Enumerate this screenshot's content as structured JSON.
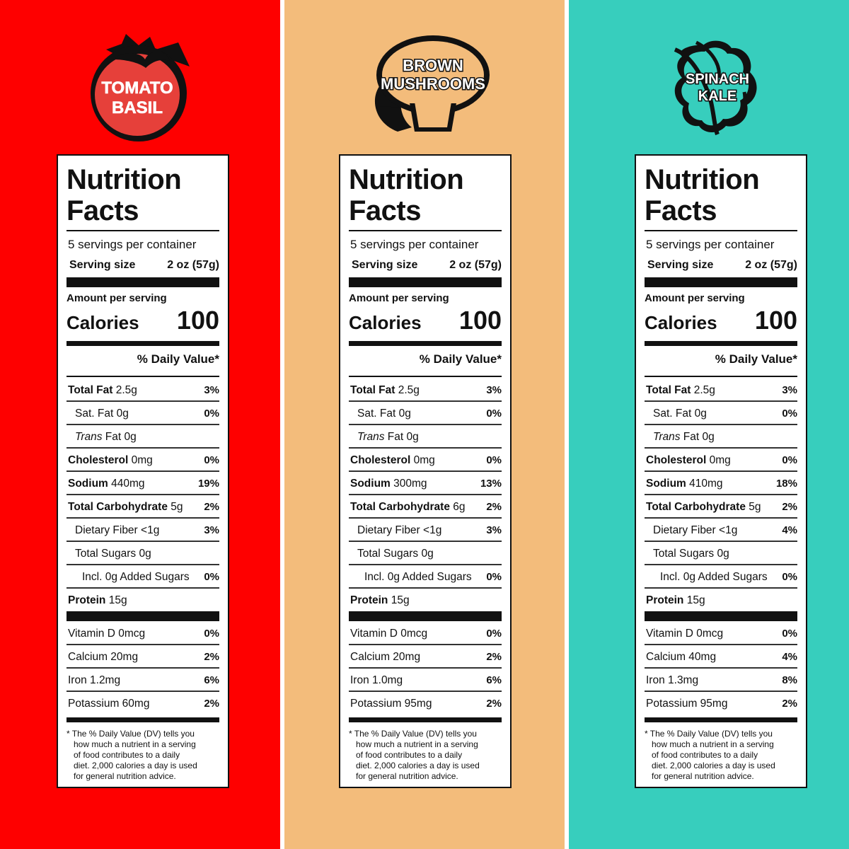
{
  "products": [
    {
      "name_line1": "TOMATO",
      "name_line2": "BASIL",
      "bg_color": "#fe0000",
      "logo_icon": "tomato-icon",
      "title_line1": "Nutrition",
      "title_line2": "Facts",
      "servings": "5 servings per container",
      "serving_size_label": "Serving size",
      "serving_size_value": "2 oz (57g)",
      "amount_per_serving": "Amount per serving",
      "calories_label": "Calories",
      "calories_value": "100",
      "daily_value_header": "% Daily Value*",
      "nutrients": [
        {
          "bold": "Total Fat",
          "text": " 2.5g",
          "pct": "3%"
        },
        {
          "text": "Sat. Fat 0g",
          "pct": "0%"
        },
        {
          "italic": "Trans",
          "text": " Fat 0g",
          "pct": ""
        },
        {
          "bold": "Cholesterol",
          "text": " 0mg",
          "pct": "0%"
        },
        {
          "bold": "Sodium",
          "text": " 440mg",
          "pct": "19%"
        },
        {
          "bold": "Total Carbohydrate",
          "text": " 5g",
          "pct": "2%"
        },
        {
          "text": "Dietary Fiber <1g",
          "pct": "3%"
        },
        {
          "text": "Total Sugars 0g",
          "pct": ""
        },
        {
          "text": "Incl. 0g Added Sugars",
          "pct": "0%"
        },
        {
          "bold": "Protein",
          "text": " 15g",
          "pct": ""
        }
      ],
      "vitamins": [
        {
          "text": "Vitamin D 0mcg",
          "pct": "0%"
        },
        {
          "text": "Calcium 20mg",
          "pct": "2%"
        },
        {
          "text": "Iron 1.2mg",
          "pct": "6%"
        },
        {
          "text": "Potassium 60mg",
          "pct": "2%"
        }
      ],
      "footnote": [
        "* The % Daily Value (DV) tells you",
        "how much a nutrient in a serving",
        "of food contributes to a daily",
        "diet. 2,000 calories a day is used",
        "for general nutrition advice."
      ]
    },
    {
      "name_line1": "BROWN",
      "name_line2": "MUSHROOMS",
      "bg_color": "#f3bc7b",
      "logo_icon": "mushroom-icon",
      "title_line1": "Nutrition",
      "title_line2": "Facts",
      "servings": "5 servings per container",
      "serving_size_label": "Serving size",
      "serving_size_value": "2 oz (57g)",
      "amount_per_serving": "Amount per serving",
      "calories_label": "Calories",
      "calories_value": "100",
      "daily_value_header": "% Daily Value*",
      "nutrients": [
        {
          "bold": "Total Fat",
          "text": " 2.5g",
          "pct": "3%"
        },
        {
          "text": "Sat. Fat 0g",
          "pct": "0%"
        },
        {
          "italic": "Trans",
          "text": " Fat 0g",
          "pct": ""
        },
        {
          "bold": "Cholesterol",
          "text": " 0mg",
          "pct": "0%"
        },
        {
          "bold": "Sodium",
          "text": " 300mg",
          "pct": "13%"
        },
        {
          "bold": "Total Carbohydrate",
          "text": " 6g",
          "pct": "2%"
        },
        {
          "text": "Dietary Fiber <1g",
          "pct": "3%"
        },
        {
          "text": "Total Sugars 0g",
          "pct": ""
        },
        {
          "text": "Incl. 0g Added Sugars",
          "pct": "0%"
        },
        {
          "bold": "Protein",
          "text": " 15g",
          "pct": ""
        }
      ],
      "vitamins": [
        {
          "text": "Vitamin D 0mcg",
          "pct": "0%"
        },
        {
          "text": "Calcium 20mg",
          "pct": "2%"
        },
        {
          "text": "Iron 1.0mg",
          "pct": "6%"
        },
        {
          "text": "Potassium 95mg",
          "pct": "2%"
        }
      ],
      "footnote": [
        "* The % Daily Value (DV) tells you",
        "how much a nutrient in a serving",
        "of food contributes to a daily",
        "diet. 2,000 calories a day is used",
        "for general nutrition advice."
      ]
    },
    {
      "name_line1": "SPINACH",
      "name_line2": "KALE",
      "bg_color": "#37cebd",
      "logo_icon": "leaf-icon",
      "title_line1": "Nutrition",
      "title_line2": "Facts",
      "servings": "5 servings per container",
      "serving_size_label": "Serving size",
      "serving_size_value": "2 oz (57g)",
      "amount_per_serving": "Amount per serving",
      "calories_label": "Calories",
      "calories_value": "100",
      "daily_value_header": "% Daily Value*",
      "nutrients": [
        {
          "bold": "Total Fat",
          "text": " 2.5g",
          "pct": "3%"
        },
        {
          "text": "Sat. Fat 0g",
          "pct": "0%"
        },
        {
          "italic": "Trans",
          "text": " Fat 0g",
          "pct": ""
        },
        {
          "bold": "Cholesterol",
          "text": " 0mg",
          "pct": "0%"
        },
        {
          "bold": "Sodium",
          "text": " 410mg",
          "pct": "18%"
        },
        {
          "bold": "Total Carbohydrate",
          "text": " 5g",
          "pct": "2%"
        },
        {
          "text": "Dietary Fiber <1g",
          "pct": "4%"
        },
        {
          "text": "Total Sugars 0g",
          "pct": ""
        },
        {
          "text": "Incl. 0g Added Sugars",
          "pct": "0%"
        },
        {
          "bold": "Protein",
          "text": " 15g",
          "pct": ""
        }
      ],
      "vitamins": [
        {
          "text": "Vitamin D 0mcg",
          "pct": "0%"
        },
        {
          "text": "Calcium 40mg",
          "pct": "4%"
        },
        {
          "text": "Iron 1.3mg",
          "pct": "8%"
        },
        {
          "text": "Potassium 95mg",
          "pct": "2%"
        }
      ],
      "footnote": [
        "* The % Daily Value (DV) tells you",
        "how much a nutrient in a serving",
        "of food contributes to a daily",
        "diet. 2,000 calories a day is used",
        "for general nutrition advice."
      ]
    }
  ]
}
